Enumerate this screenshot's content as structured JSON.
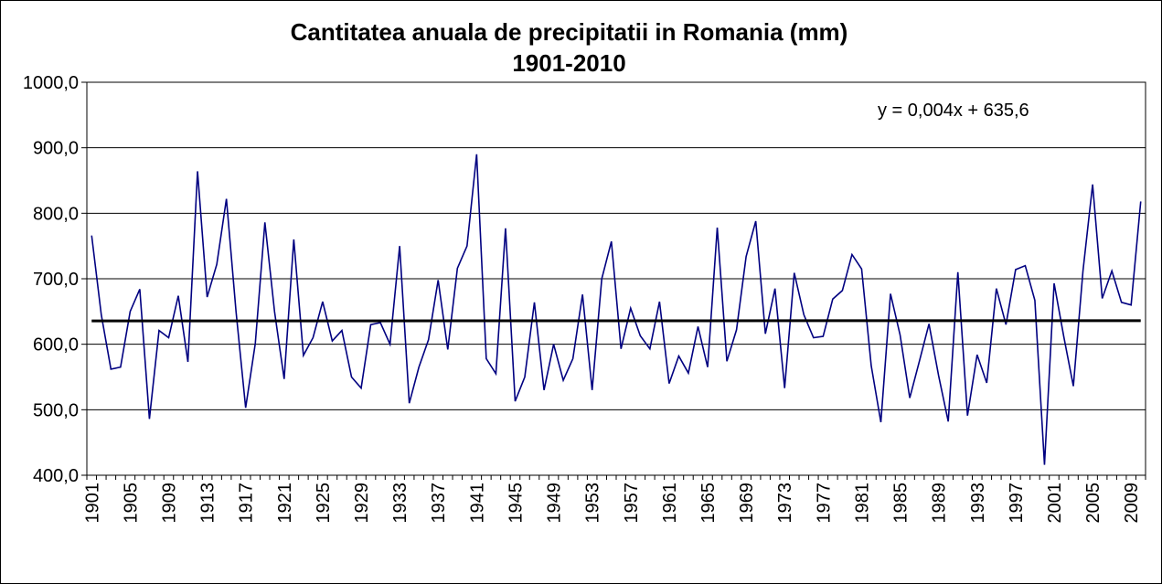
{
  "chart_data": {
    "type": "line",
    "title": "Cantitatea anuala de precipitatii in Romania (mm)",
    "subtitle": "1901-2010",
    "xlabel": "",
    "ylabel": "",
    "ylim": [
      400,
      1000
    ],
    "yticks": [
      "400,0",
      "500,0",
      "600,0",
      "700,0",
      "800,0",
      "900,0",
      "1000,0"
    ],
    "yticks_values": [
      400,
      500,
      600,
      700,
      800,
      900,
      1000
    ],
    "xticks": [
      "1901",
      "1905",
      "1909",
      "1913",
      "1917",
      "1921",
      "1925",
      "1929",
      "1933",
      "1937",
      "1941",
      "1945",
      "1949",
      "1953",
      "1957",
      "1961",
      "1965",
      "1969",
      "1973",
      "1977",
      "1981",
      "1985",
      "1989",
      "1993",
      "1997",
      "2001",
      "2005",
      "2009"
    ],
    "grid": "horizontal",
    "x_start": 1901,
    "x_end": 2010,
    "series": [
      {
        "name": "",
        "color": "#000080",
        "values": [
          766,
          645,
          562,
          565,
          650,
          684,
          486,
          621,
          610,
          674,
          573,
          864,
          672,
          722,
          822,
          650,
          503,
          601,
          786,
          650,
          547,
          760,
          583,
          610,
          665,
          605,
          621,
          550,
          533,
          630,
          633,
          600,
          750,
          510,
          565,
          607,
          698,
          592,
          716,
          750,
          890,
          578,
          555,
          777,
          513,
          550,
          664,
          530,
          600,
          545,
          578,
          676,
          530,
          700,
          757,
          593,
          655,
          613,
          593,
          665,
          540,
          582,
          556,
          627,
          565,
          778,
          574,
          622,
          734,
          788,
          616,
          685,
          533,
          709,
          645,
          610,
          612,
          669,
          682,
          737,
          715,
          567,
          481,
          677,
          614,
          518,
          574,
          631,
          552,
          482,
          710,
          491,
          584,
          541,
          685,
          630,
          714,
          720,
          667,
          416,
          693,
          612,
          536,
          712,
          844,
          670,
          712,
          664,
          660,
          818
        ]
      },
      {
        "name": "",
        "type": "trend",
        "color": "#000000",
        "equation": "y = 0,004x + 635,6",
        "slope": 0.004,
        "intercept": 635.6
      }
    ]
  }
}
